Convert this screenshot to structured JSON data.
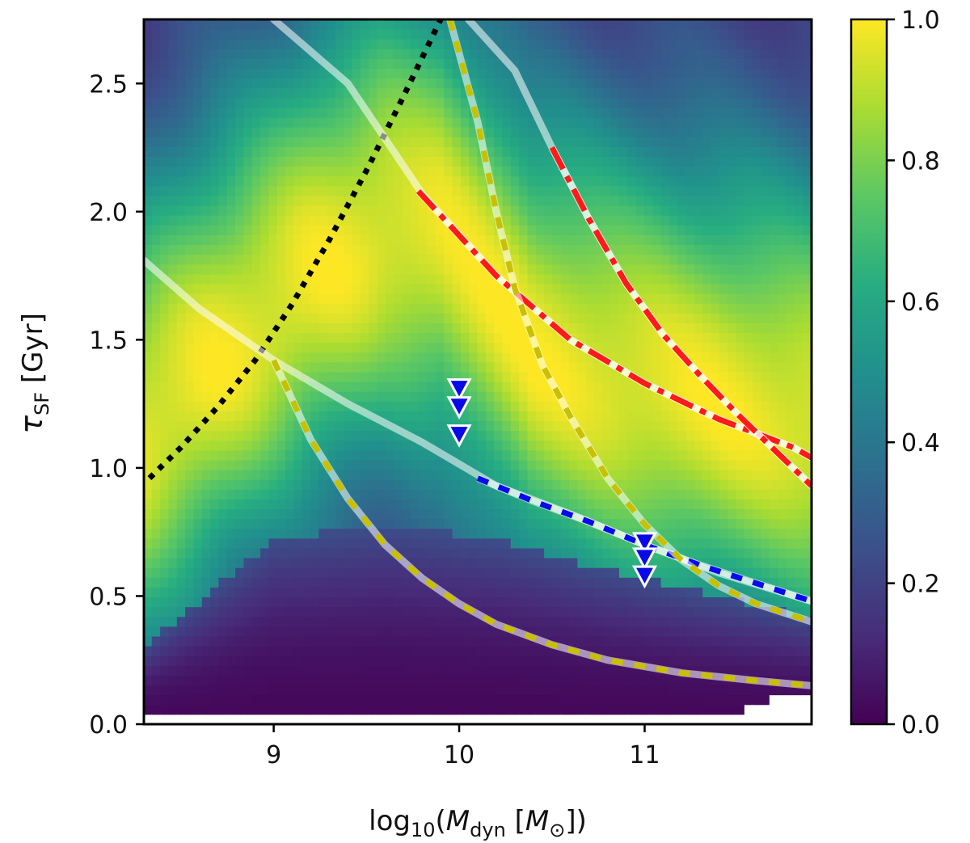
{
  "chart_data": {
    "type": "heatmap",
    "title": "",
    "xlabel": "log10(Mdyn [M⊙])",
    "xlabel_parts": {
      "prefix": "log",
      "sub": "10",
      "open": "(",
      "M": "M",
      "dyn": "dyn",
      "bracket_open": " [",
      "Msun": "M",
      "sun_sub": "⊙",
      "close": "])"
    },
    "ylabel": "τSF [Gyr]",
    "ylabel_parts": {
      "tau": "τ",
      "sub": "SF",
      "unit": " [Gyr]"
    },
    "xlim": [
      8.3,
      11.9
    ],
    "ylim": [
      0.0,
      2.75
    ],
    "xticks": [
      9,
      10,
      11
    ],
    "xtick_labels": [
      "9",
      "10",
      "11"
    ],
    "yticks": [
      0.0,
      0.5,
      1.0,
      1.5,
      2.0,
      2.5
    ],
    "ytick_labels": [
      "0.0",
      "0.5",
      "1.0",
      "1.5",
      "2.0",
      "2.5"
    ],
    "colorbar": {
      "colormap": "viridis",
      "range": [
        0.0,
        1.0
      ],
      "ticks": [
        0.0,
        0.2,
        0.4,
        0.6,
        0.8,
        1.0
      ],
      "tick_labels": [
        "0.0",
        "0.2",
        "0.4",
        "0.6",
        "0.8",
        "1.0"
      ]
    },
    "colors": {
      "red_dashdot": "#ff1a1a",
      "blue_dashed": "#0a0aee",
      "yellow_dashed": "#c8c000",
      "black_dotted": "#000000",
      "band_light": "#ffffff",
      "marker_fill": "#0a0ae6",
      "marker_edge": "#ffffff"
    },
    "series": [
      {
        "name": "black-dotted",
        "style": "dotted",
        "x": [
          8.33,
          8.5,
          8.7,
          8.9,
          9.1,
          9.3,
          9.5,
          9.7,
          9.9
        ],
        "y": [
          0.96,
          1.08,
          1.24,
          1.42,
          1.64,
          1.89,
          2.16,
          2.45,
          2.75
        ]
      },
      {
        "name": "band-A",
        "style": "band",
        "x": [
          9.0,
          9.4,
          9.8,
          10.2,
          10.6,
          11.0,
          11.4,
          11.8,
          11.9
        ],
        "y": [
          2.75,
          2.5,
          2.07,
          1.75,
          1.5,
          1.33,
          1.19,
          1.08,
          1.04
        ]
      },
      {
        "name": "red-A",
        "style": "dashdot",
        "x": [
          9.78,
          10.2,
          10.6,
          11.0,
          11.4,
          11.8,
          11.9
        ],
        "y": [
          2.08,
          1.75,
          1.5,
          1.33,
          1.19,
          1.08,
          1.04
        ]
      },
      {
        "name": "band-B",
        "style": "band",
        "x": [
          10.05,
          10.3,
          10.5,
          10.7,
          10.9,
          11.1,
          11.3,
          11.5,
          11.7,
          11.9
        ],
        "y": [
          2.75,
          2.55,
          2.25,
          1.97,
          1.72,
          1.52,
          1.36,
          1.21,
          1.07,
          0.93
        ]
      },
      {
        "name": "red-B",
        "style": "dashdot",
        "x": [
          10.5,
          10.7,
          10.9,
          11.1,
          11.3,
          11.5,
          11.7,
          11.9
        ],
        "y": [
          2.25,
          1.97,
          1.72,
          1.52,
          1.36,
          1.21,
          1.07,
          0.93
        ]
      },
      {
        "name": "band-C",
        "style": "band",
        "x": [
          8.3,
          8.6,
          9.0,
          9.4,
          9.8,
          10.2,
          10.6,
          11.0,
          11.4,
          11.9
        ],
        "y": [
          1.81,
          1.62,
          1.42,
          1.25,
          1.1,
          0.93,
          0.82,
          0.7,
          0.59,
          0.48
        ]
      },
      {
        "name": "blue-C",
        "style": "dashed",
        "x": [
          10.1,
          10.4,
          10.7,
          11.0,
          11.3,
          11.6,
          11.9
        ],
        "y": [
          0.96,
          0.87,
          0.79,
          0.7,
          0.62,
          0.55,
          0.48
        ]
      },
      {
        "name": "yellow-D",
        "style": "dashed",
        "x": [
          9.95,
          10.1,
          10.2,
          10.3,
          10.45,
          10.6,
          10.8,
          11.0,
          11.2,
          11.4,
          11.6,
          11.9
        ],
        "y": [
          2.75,
          2.35,
          2.0,
          1.7,
          1.4,
          1.2,
          0.96,
          0.78,
          0.64,
          0.54,
          0.47,
          0.4
        ]
      },
      {
        "name": "yellow-E",
        "style": "dashed",
        "x": [
          9.0,
          9.2,
          9.4,
          9.6,
          9.8,
          10.0,
          10.2,
          10.5,
          10.8,
          11.2,
          11.6,
          11.9
        ],
        "y": [
          1.42,
          1.11,
          0.88,
          0.7,
          0.57,
          0.47,
          0.39,
          0.31,
          0.25,
          0.2,
          0.17,
          0.15
        ]
      }
    ],
    "markers": [
      {
        "x": 10.0,
        "y": 1.31
      },
      {
        "x": 10.0,
        "y": 1.24
      },
      {
        "x": 10.0,
        "y": 1.13
      },
      {
        "x": 11.0,
        "y": 0.71
      },
      {
        "x": 11.0,
        "y": 0.65
      },
      {
        "x": 11.0,
        "y": 0.58
      }
    ],
    "heatmap_model": {
      "ridge": [
        [
          8.3,
          1.12
        ],
        [
          8.8,
          1.45
        ],
        [
          9.2,
          1.72
        ],
        [
          9.6,
          1.9
        ],
        [
          9.9,
          1.88
        ],
        [
          10.1,
          1.7
        ],
        [
          10.4,
          1.42
        ],
        [
          10.8,
          1.32
        ],
        [
          11.2,
          1.25
        ],
        [
          11.6,
          1.2
        ],
        [
          11.9,
          1.15
        ]
      ],
      "low_value_region_top": [
        [
          8.3,
          0.3
        ],
        [
          9.0,
          0.72
        ],
        [
          9.6,
          0.78
        ],
        [
          10.2,
          0.72
        ],
        [
          10.8,
          0.6
        ],
        [
          11.4,
          0.5
        ],
        [
          11.9,
          0.42
        ]
      ],
      "white_cutout": [
        [
          11.38,
          0.03
        ],
        [
          11.5,
          0.05
        ],
        [
          11.7,
          0.1
        ],
        [
          11.9,
          0.12
        ]
      ]
    }
  }
}
